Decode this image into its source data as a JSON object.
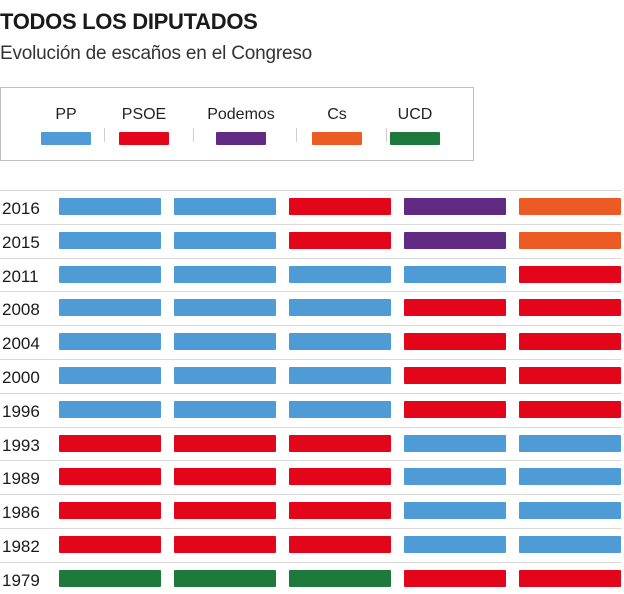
{
  "title": "TODOS LOS DIPUTADOS",
  "subtitle": "Evolución de escaños en el Congreso",
  "colors": {
    "PP": "#4e9bd6",
    "PSOE": "#e3061a",
    "Podemos": "#612a83",
    "Cs": "#ec5b23",
    "UCD": "#1d7a3c"
  },
  "legend": [
    {
      "label": "PP",
      "party": "PP"
    },
    {
      "label": "PSOE",
      "party": "PSOE"
    },
    {
      "label": "Podemos",
      "party": "Podemos"
    },
    {
      "label": "Cs",
      "party": "Cs"
    },
    {
      "label": "UCD",
      "party": "UCD"
    }
  ],
  "chart_data": {
    "type": "table",
    "title": "TODOS LOS DIPUTADOS",
    "subtitle": "Evolución de escaños en el Congreso",
    "rows": [
      {
        "year": "2016",
        "cells": [
          "PP",
          "PP",
          "PSOE",
          "Podemos",
          "Cs"
        ]
      },
      {
        "year": "2015",
        "cells": [
          "PP",
          "PP",
          "PSOE",
          "Podemos",
          "Cs"
        ]
      },
      {
        "year": "2011",
        "cells": [
          "PP",
          "PP",
          "PP",
          "PP",
          "PSOE"
        ]
      },
      {
        "year": "2008",
        "cells": [
          "PP",
          "PP",
          "PP",
          "PSOE",
          "PSOE"
        ]
      },
      {
        "year": "2004",
        "cells": [
          "PP",
          "PP",
          "PP",
          "PSOE",
          "PSOE"
        ]
      },
      {
        "year": "2000",
        "cells": [
          "PP",
          "PP",
          "PP",
          "PSOE",
          "PSOE"
        ]
      },
      {
        "year": "1996",
        "cells": [
          "PP",
          "PP",
          "PP",
          "PSOE",
          "PSOE"
        ]
      },
      {
        "year": "1993",
        "cells": [
          "PSOE",
          "PSOE",
          "PSOE",
          "PP",
          "PP"
        ]
      },
      {
        "year": "1989",
        "cells": [
          "PSOE",
          "PSOE",
          "PSOE",
          "PP",
          "PP"
        ]
      },
      {
        "year": "1986",
        "cells": [
          "PSOE",
          "PSOE",
          "PSOE",
          "PP",
          "PP"
        ]
      },
      {
        "year": "1982",
        "cells": [
          "PSOE",
          "PSOE",
          "PSOE",
          "PP",
          "PP"
        ]
      },
      {
        "year": "1979",
        "cells": [
          "UCD",
          "UCD",
          "UCD",
          "PSOE",
          "PSOE"
        ]
      }
    ]
  }
}
